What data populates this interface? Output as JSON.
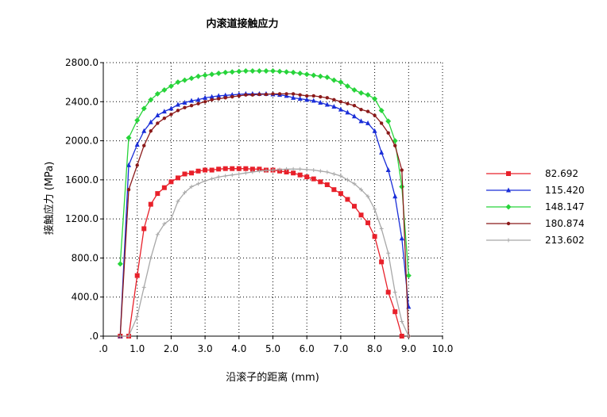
{
  "chart_data": {
    "type": "line",
    "title": "内滚道接触应力",
    "xlabel": "沿滚子的距离 (mm)",
    "ylabel": "接触应力 (MPa)",
    "xlim": [
      0,
      10
    ],
    "ylim": [
      0,
      2800
    ],
    "x_ticks": [
      ".0",
      "1.0",
      "2.0",
      "3.0",
      "4.0",
      "5.0",
      "6.0",
      "7.0",
      "8.0",
      "9.0",
      "10.0"
    ],
    "y_ticks": [
      ".0",
      "400.0",
      "800.0",
      "1200.0",
      "1600.0",
      "2000.0",
      "2400.0",
      "2800.0"
    ],
    "grid": true,
    "legend_position": "right",
    "series": [
      {
        "name": "82.692",
        "color": "#e8202a",
        "marker": "square",
        "points": [
          [
            0.5,
            0
          ],
          [
            0.75,
            0
          ],
          [
            1.0,
            620
          ],
          [
            1.2,
            1100
          ],
          [
            1.4,
            1350
          ],
          [
            1.6,
            1460
          ],
          [
            1.8,
            1520
          ],
          [
            2.0,
            1580
          ],
          [
            2.2,
            1620
          ],
          [
            2.4,
            1660
          ],
          [
            2.6,
            1670
          ],
          [
            2.8,
            1690
          ],
          [
            3.0,
            1700
          ],
          [
            3.2,
            1700
          ],
          [
            3.4,
            1710
          ],
          [
            3.6,
            1715
          ],
          [
            3.8,
            1715
          ],
          [
            4.0,
            1715
          ],
          [
            4.2,
            1715
          ],
          [
            4.4,
            1710
          ],
          [
            4.6,
            1710
          ],
          [
            4.8,
            1700
          ],
          [
            5.0,
            1700
          ],
          [
            5.2,
            1690
          ],
          [
            5.4,
            1680
          ],
          [
            5.6,
            1670
          ],
          [
            5.8,
            1650
          ],
          [
            6.0,
            1630
          ],
          [
            6.2,
            1610
          ],
          [
            6.4,
            1580
          ],
          [
            6.6,
            1550
          ],
          [
            6.8,
            1500
          ],
          [
            7.0,
            1460
          ],
          [
            7.2,
            1400
          ],
          [
            7.4,
            1330
          ],
          [
            7.6,
            1240
          ],
          [
            7.8,
            1160
          ],
          [
            8.0,
            1020
          ],
          [
            8.2,
            760
          ],
          [
            8.4,
            450
          ],
          [
            8.6,
            250
          ],
          [
            8.8,
            0
          ]
        ]
      },
      {
        "name": "115.420",
        "color": "#1a2ed8",
        "marker": "triangle",
        "points": [
          [
            0.5,
            0
          ],
          [
            0.75,
            1750
          ],
          [
            1.0,
            1960
          ],
          [
            1.2,
            2100
          ],
          [
            1.4,
            2190
          ],
          [
            1.6,
            2260
          ],
          [
            1.8,
            2300
          ],
          [
            2.0,
            2330
          ],
          [
            2.2,
            2370
          ],
          [
            2.4,
            2390
          ],
          [
            2.6,
            2410
          ],
          [
            2.8,
            2420
          ],
          [
            3.0,
            2440
          ],
          [
            3.2,
            2450
          ],
          [
            3.4,
            2460
          ],
          [
            3.6,
            2465
          ],
          [
            3.8,
            2470
          ],
          [
            4.0,
            2475
          ],
          [
            4.2,
            2480
          ],
          [
            4.4,
            2480
          ],
          [
            4.6,
            2480
          ],
          [
            4.8,
            2480
          ],
          [
            5.0,
            2475
          ],
          [
            5.2,
            2470
          ],
          [
            5.4,
            2460
          ],
          [
            5.6,
            2440
          ],
          [
            5.8,
            2430
          ],
          [
            6.0,
            2420
          ],
          [
            6.2,
            2410
          ],
          [
            6.4,
            2390
          ],
          [
            6.6,
            2370
          ],
          [
            6.8,
            2350
          ],
          [
            7.0,
            2320
          ],
          [
            7.2,
            2290
          ],
          [
            7.4,
            2250
          ],
          [
            7.6,
            2200
          ],
          [
            7.8,
            2180
          ],
          [
            8.0,
            2100
          ],
          [
            8.2,
            1880
          ],
          [
            8.4,
            1700
          ],
          [
            8.6,
            1430
          ],
          [
            8.8,
            1000
          ],
          [
            9.0,
            300
          ]
        ]
      },
      {
        "name": "148.147",
        "color": "#27d43a",
        "marker": "diamond",
        "points": [
          [
            0.5,
            740
          ],
          [
            0.75,
            2030
          ],
          [
            1.0,
            2210
          ],
          [
            1.2,
            2330
          ],
          [
            1.4,
            2420
          ],
          [
            1.6,
            2480
          ],
          [
            1.8,
            2520
          ],
          [
            2.0,
            2560
          ],
          [
            2.2,
            2600
          ],
          [
            2.4,
            2620
          ],
          [
            2.6,
            2640
          ],
          [
            2.8,
            2660
          ],
          [
            3.0,
            2670
          ],
          [
            3.2,
            2680
          ],
          [
            3.4,
            2690
          ],
          [
            3.6,
            2700
          ],
          [
            3.8,
            2705
          ],
          [
            4.0,
            2710
          ],
          [
            4.2,
            2715
          ],
          [
            4.4,
            2715
          ],
          [
            4.6,
            2715
          ],
          [
            4.8,
            2715
          ],
          [
            5.0,
            2715
          ],
          [
            5.2,
            2710
          ],
          [
            5.4,
            2705
          ],
          [
            5.6,
            2700
          ],
          [
            5.8,
            2690
          ],
          [
            6.0,
            2680
          ],
          [
            6.2,
            2670
          ],
          [
            6.4,
            2660
          ],
          [
            6.6,
            2650
          ],
          [
            6.8,
            2620
          ],
          [
            7.0,
            2600
          ],
          [
            7.2,
            2560
          ],
          [
            7.4,
            2520
          ],
          [
            7.6,
            2490
          ],
          [
            7.8,
            2470
          ],
          [
            8.0,
            2430
          ],
          [
            8.2,
            2310
          ],
          [
            8.4,
            2200
          ],
          [
            8.6,
            2000
          ],
          [
            8.8,
            1530
          ],
          [
            9.0,
            620
          ]
        ]
      },
      {
        "name": "180.874",
        "color": "#8b1a1a",
        "marker": "dot",
        "points": [
          [
            0.5,
            0
          ],
          [
            0.75,
            1500
          ],
          [
            1.0,
            1750
          ],
          [
            1.2,
            1950
          ],
          [
            1.4,
            2100
          ],
          [
            1.6,
            2180
          ],
          [
            1.8,
            2230
          ],
          [
            2.0,
            2270
          ],
          [
            2.2,
            2310
          ],
          [
            2.4,
            2340
          ],
          [
            2.6,
            2360
          ],
          [
            2.8,
            2380
          ],
          [
            3.0,
            2400
          ],
          [
            3.2,
            2420
          ],
          [
            3.4,
            2430
          ],
          [
            3.6,
            2440
          ],
          [
            3.8,
            2450
          ],
          [
            4.0,
            2460
          ],
          [
            4.2,
            2470
          ],
          [
            4.4,
            2470
          ],
          [
            4.6,
            2475
          ],
          [
            4.8,
            2475
          ],
          [
            5.0,
            2480
          ],
          [
            5.2,
            2480
          ],
          [
            5.4,
            2480
          ],
          [
            5.6,
            2480
          ],
          [
            5.8,
            2470
          ],
          [
            6.0,
            2460
          ],
          [
            6.2,
            2460
          ],
          [
            6.4,
            2450
          ],
          [
            6.6,
            2440
          ],
          [
            6.8,
            2420
          ],
          [
            7.0,
            2400
          ],
          [
            7.2,
            2380
          ],
          [
            7.4,
            2360
          ],
          [
            7.6,
            2320
          ],
          [
            7.8,
            2300
          ],
          [
            8.0,
            2260
          ],
          [
            8.2,
            2180
          ],
          [
            8.4,
            2080
          ],
          [
            8.6,
            1950
          ],
          [
            8.8,
            1700
          ],
          [
            9.0,
            0
          ]
        ]
      },
      {
        "name": "213.602",
        "color": "#a8a8a8",
        "marker": "plus",
        "points": [
          [
            0.5,
            0
          ],
          [
            0.75,
            0
          ],
          [
            1.0,
            200
          ],
          [
            1.2,
            500
          ],
          [
            1.4,
            800
          ],
          [
            1.6,
            1040
          ],
          [
            1.8,
            1150
          ],
          [
            2.0,
            1200
          ],
          [
            2.2,
            1380
          ],
          [
            2.4,
            1470
          ],
          [
            2.6,
            1530
          ],
          [
            2.8,
            1560
          ],
          [
            3.0,
            1590
          ],
          [
            3.2,
            1610
          ],
          [
            3.4,
            1630
          ],
          [
            3.6,
            1640
          ],
          [
            3.8,
            1650
          ],
          [
            4.0,
            1660
          ],
          [
            4.2,
            1670
          ],
          [
            4.4,
            1680
          ],
          [
            4.6,
            1690
          ],
          [
            4.8,
            1695
          ],
          [
            5.0,
            1700
          ],
          [
            5.2,
            1705
          ],
          [
            5.4,
            1710
          ],
          [
            5.6,
            1710
          ],
          [
            5.8,
            1710
          ],
          [
            6.0,
            1705
          ],
          [
            6.2,
            1700
          ],
          [
            6.4,
            1690
          ],
          [
            6.6,
            1680
          ],
          [
            6.8,
            1660
          ],
          [
            7.0,
            1640
          ],
          [
            7.2,
            1600
          ],
          [
            7.4,
            1560
          ],
          [
            7.6,
            1500
          ],
          [
            7.8,
            1430
          ],
          [
            8.0,
            1300
          ],
          [
            8.2,
            1100
          ],
          [
            8.4,
            850
          ],
          [
            8.6,
            450
          ],
          [
            8.8,
            150
          ],
          [
            9.0,
            0
          ]
        ]
      }
    ]
  }
}
